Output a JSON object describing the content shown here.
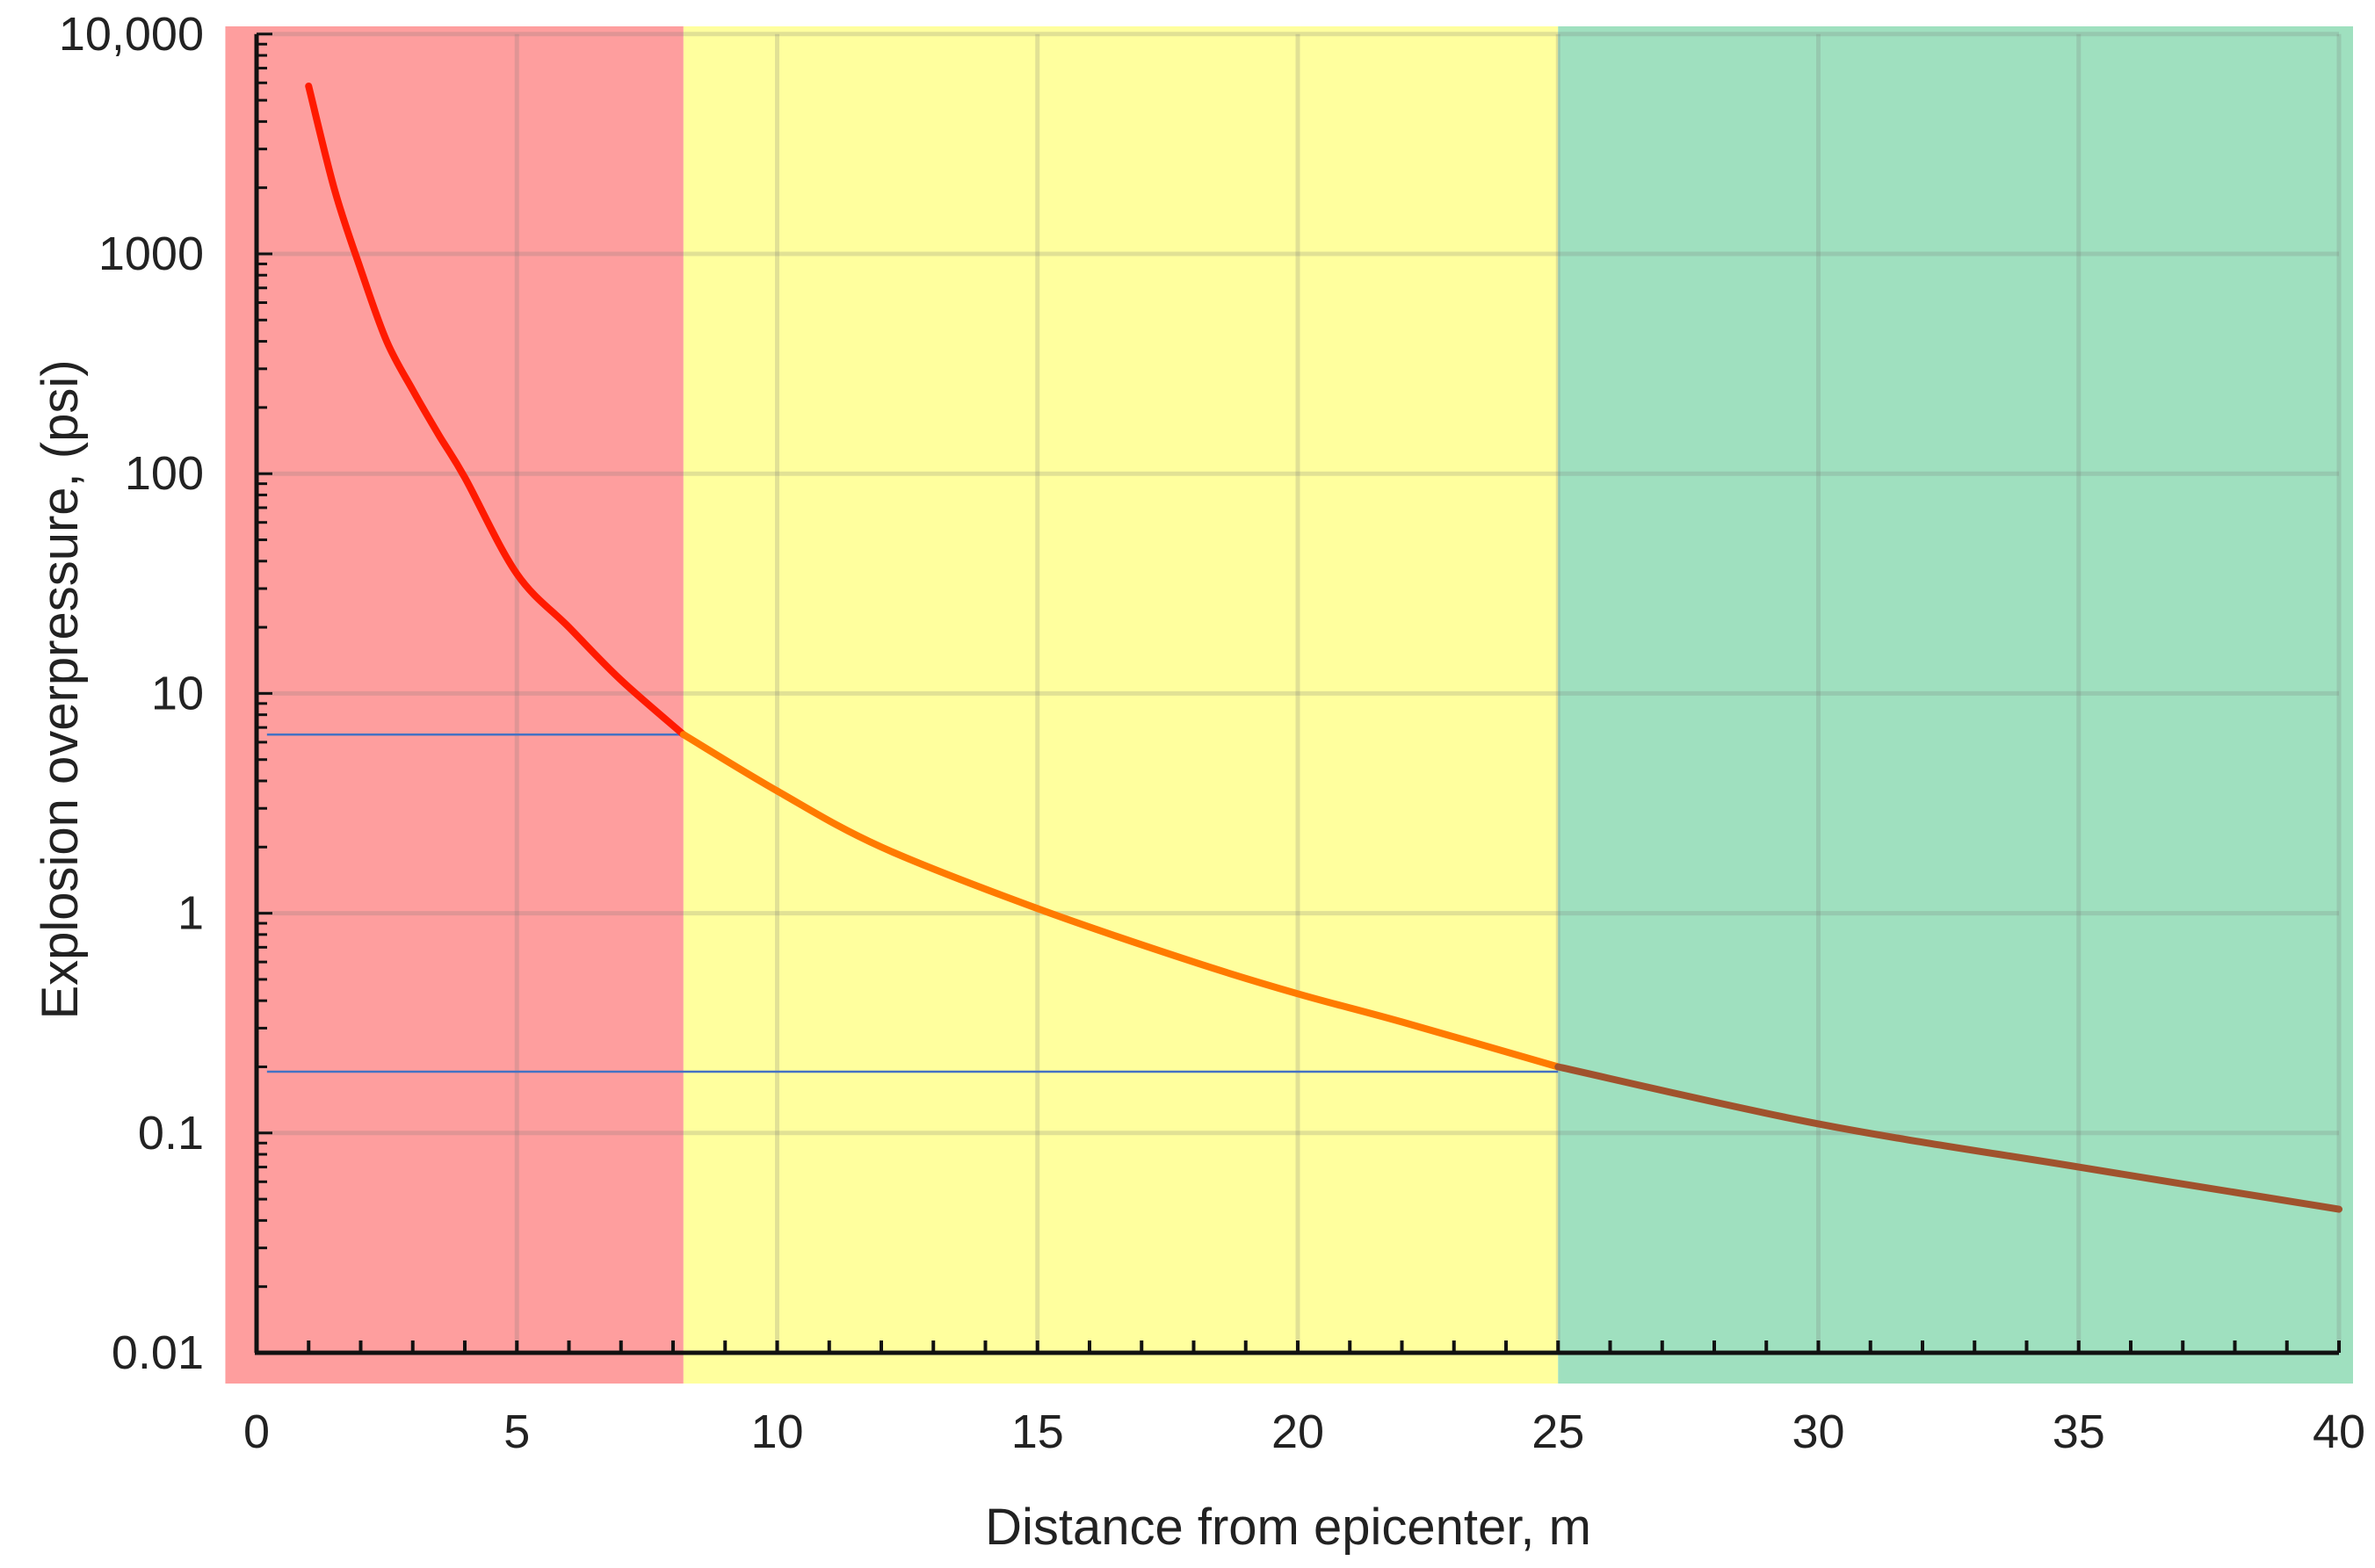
{
  "chart_data": {
    "type": "line",
    "xlabel": "Distance from epicenter, m",
    "ylabel": "Explosion overpressure, (psi)",
    "x_ticks": [
      0,
      5,
      10,
      15,
      20,
      25,
      30,
      35,
      40
    ],
    "x_tick_labels": [
      "0",
      "5",
      "10",
      "15",
      "20",
      "25",
      "30",
      "35",
      "40"
    ],
    "xlim": [
      0,
      40
    ],
    "y_scale": "log",
    "ylim": [
      0.01,
      10000
    ],
    "y_ticks": [
      0.01,
      0.1,
      1,
      10,
      100,
      1000,
      10000
    ],
    "y_tick_labels": [
      "0.01",
      "0.1",
      "1",
      "10",
      "100",
      "1000",
      "10,000"
    ],
    "grid": true,
    "zones": [
      {
        "x_start": -0.6,
        "x_end": 8.2,
        "color": "#fe9e9e"
      },
      {
        "x_start": 8.2,
        "x_end": 25,
        "color": "#ffff9e"
      },
      {
        "x_start": 25,
        "x_end": 41,
        "color": "#9fe0bf"
      }
    ],
    "reference_lines": [
      {
        "y": 6.5,
        "x_start": 0.2,
        "x_end": 8.2,
        "color": "#4472c4"
      },
      {
        "y": 0.19,
        "x_start": 0.2,
        "x_end": 25,
        "color": "#4472c4"
      }
    ],
    "series": [
      {
        "color": "#ff1a00",
        "x": [
          1,
          1.5,
          2,
          2.5,
          3,
          3.5,
          4,
          5,
          6,
          7,
          8.2
        ],
        "y": [
          5800,
          1950,
          850,
          400,
          240,
          150,
          96,
          35,
          20,
          11.5,
          6.5
        ]
      },
      {
        "color": "#ff7a00",
        "x": [
          8.2,
          10,
          12,
          15,
          18,
          20,
          22,
          25
        ],
        "y": [
          6.5,
          3.6,
          2.0,
          1.05,
          0.6,
          0.43,
          0.32,
          0.2
        ]
      },
      {
        "color": "#a0522d",
        "x": [
          25,
          30,
          35,
          40
        ],
        "y": [
          0.2,
          0.11,
          0.07,
          0.045
        ]
      }
    ]
  }
}
